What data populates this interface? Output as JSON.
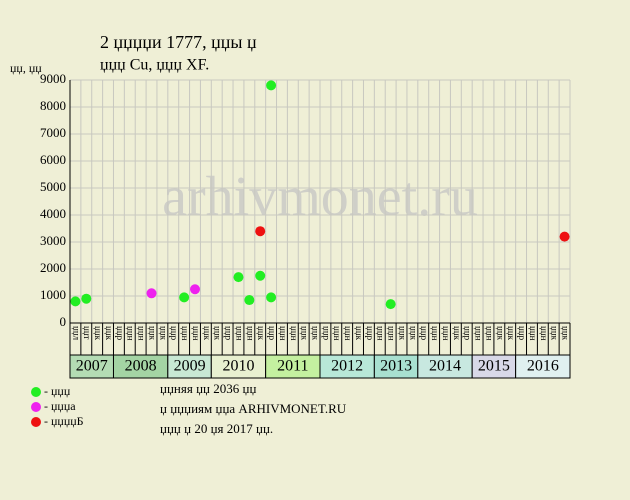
{
  "chart_data": {
    "type": "scatter",
    "title": "2 џџџџи 1777, џџы џ",
    "subtitle": "џџџ Cu, џџџ XF.",
    "y_label": "џџ, џџ",
    "watermark": "arhivmonet.ru",
    "ylim": [
      0,
      9000
    ],
    "yticks": [
      0,
      1000,
      2000,
      3000,
      4000,
      5000,
      6000,
      7000,
      8000,
      9000
    ],
    "grid": true,
    "categories": [
      "џџл",
      "џџт",
      "џџк",
      "џџк",
      "џџр",
      "џџн",
      "џџн",
      "џџк",
      "џџк",
      "џџр",
      "џџн",
      "џџн",
      "џџк",
      "џџк",
      "џџр",
      "џџн",
      "џџн",
      "џџк",
      "џџр",
      "џџн",
      "џџн",
      "џџк",
      "џџк",
      "џџр",
      "џџн",
      "џџн",
      "џџк",
      "џџр",
      "џџн",
      "џџн",
      "џџк",
      "џџк",
      "џџр",
      "џџн",
      "џџн",
      "џџк",
      "џџр",
      "џџн",
      "џџн",
      "џџк",
      "џџк",
      "џџр",
      "џџн",
      "џџн",
      "џџк",
      "џџк"
    ],
    "year_groups": [
      {
        "label": "2007",
        "columns": 4,
        "color": "#b4dcb4"
      },
      {
        "label": "2008",
        "columns": 5,
        "color": "#a4d4a4"
      },
      {
        "label": "2009",
        "columns": 4,
        "color": "#c8e8d4"
      },
      {
        "label": "2010",
        "columns": 5,
        "color": "#e8f0d0"
      },
      {
        "label": "2011",
        "columns": 5,
        "color": "#c4f0a0"
      },
      {
        "label": "2012",
        "columns": 5,
        "color": "#b8e8d8"
      },
      {
        "label": "2013",
        "columns": 4,
        "color": "#a8e0d0"
      },
      {
        "label": "2014",
        "columns": 5,
        "color": "#c8e8e0"
      },
      {
        "label": "2015",
        "columns": 4,
        "color": "#d8d8e8"
      },
      {
        "label": "2016",
        "columns": 5,
        "color": "#e0f0f0"
      }
    ],
    "series": [
      {
        "name": "- џџџ",
        "color": "#22ee22",
        "x": [
          0,
          1,
          10,
          15,
          16,
          17,
          18,
          18,
          29
        ],
        "values": [
          800,
          900,
          950,
          1700,
          850,
          1750,
          8800,
          950,
          700
        ]
      },
      {
        "name": "- џџџа",
        "color": "#ee22ee",
        "x": [
          7,
          11
        ],
        "values": [
          1100,
          1250
        ]
      },
      {
        "name": "- џџџџБ",
        "color": "#ee1111",
        "x": [
          17,
          45
        ],
        "values": [
          3400,
          3200
        ]
      }
    ],
    "notes": [
      "џџняя џџ 2036 џџ",
      "џ џџџиям џџа ARHIVMONET.RU",
      "џџџ џ 20 џя 2017 џџ."
    ]
  }
}
